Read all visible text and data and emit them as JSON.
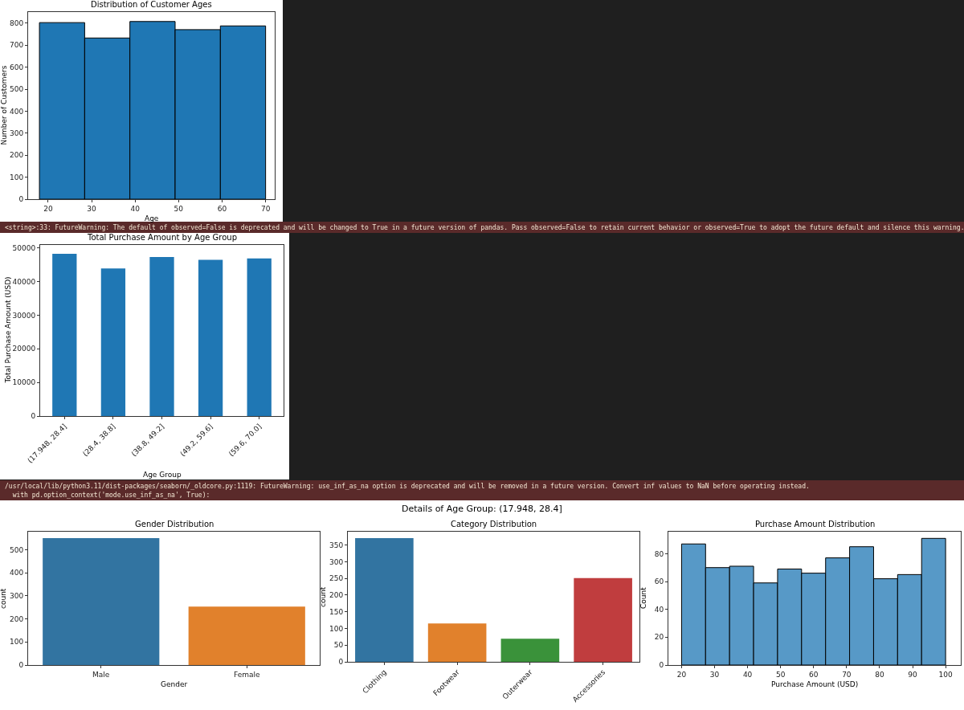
{
  "chart_data": [
    {
      "type": "histogram",
      "title": "Distribution of Customer Ages",
      "xlabel": "Age",
      "ylabel": "Number of Customers",
      "bins": [
        18,
        28.4,
        38.8,
        49.2,
        59.6,
        70
      ],
      "values": [
        803,
        733,
        808,
        771,
        788
      ],
      "color": "#1f77b4",
      "xlim": [
        15.4,
        72.1
      ],
      "xticks": [
        20,
        30,
        40,
        50,
        60,
        70
      ],
      "ylim": [
        0,
        851
      ],
      "yticks": [
        0,
        100,
        200,
        300,
        400,
        500,
        600,
        700,
        800
      ]
    },
    {
      "type": "other",
      "annotations": [
        "<string>:33: FutureWarning: The default of observed=False is deprecated and will be changed to True in a future version of pandas. Pass observed=False to retain current behavior or observed=True to adopt the future default and silence this warning."
      ]
    },
    {
      "type": "bar",
      "title": "Total Purchase Amount by Age Group",
      "xlabel": "Age Group",
      "ylabel": "Total Purchase Amount (USD)",
      "categories": [
        "(17.948, 28.4]",
        "(28.4, 38.8]",
        "(38.8, 49.2]",
        "(49.2, 59.6]",
        "(59.6, 70.0]"
      ],
      "values": [
        48300,
        43900,
        47300,
        46500,
        46900
      ],
      "color": "#1f77b4",
      "ylim": [
        0,
        50900
      ],
      "yticks": [
        0,
        10000,
        20000,
        30000,
        40000,
        50000
      ]
    },
    {
      "type": "other",
      "annotations": [
        "/usr/local/lib/python3.11/dist-packages/seaborn/_oldcore.py:1119: FutureWarning: use_inf_as_na option is deprecated and will be removed in a future version. Convert inf values to NaN before operating instead.",
        "  with pd.option_context('mode.use_inf_as_na', True):"
      ]
    },
    {
      "type": "other",
      "title": "Details of Age Group: (17.948, 28.4]"
    },
    {
      "type": "bar",
      "title": "Gender Distribution",
      "xlabel": "Gender",
      "ylabel": "count",
      "categories": [
        "Male",
        "Female"
      ],
      "values": [
        550,
        253
      ],
      "colors": [
        "#3274a1",
        "#e1812c"
      ],
      "ylim": [
        0,
        578
      ],
      "yticks": [
        0,
        100,
        200,
        300,
        400,
        500
      ]
    },
    {
      "type": "bar",
      "title": "Category Distribution",
      "ylabel": "count",
      "categories": [
        "Clothing",
        "Footwear",
        "Outerwear",
        "Accessories"
      ],
      "values": [
        371,
        115,
        69,
        251
      ],
      "colors": [
        "#3274a1",
        "#e1812c",
        "#3a923a",
        "#c03d3e"
      ],
      "ylim": [
        0,
        390
      ],
      "yticks": [
        0,
        50,
        100,
        150,
        200,
        250,
        300,
        350
      ]
    },
    {
      "type": "histogram",
      "title": "Purchase Amount Distribution",
      "xlabel": "Purchase Amount (USD)",
      "ylabel": "Count",
      "bins": [
        20,
        27.27,
        34.55,
        41.82,
        49.09,
        56.36,
        63.64,
        70.91,
        78.18,
        85.45,
        92.73,
        100
      ],
      "values": [
        87,
        70,
        71,
        59,
        69,
        66,
        77,
        85,
        62,
        65,
        91
      ],
      "color": "#5799c7",
      "xlim": [
        16,
        104.6
      ],
      "xticks": [
        20,
        30,
        40,
        50,
        60,
        70,
        80,
        90,
        100
      ],
      "ylim": [
        0,
        95.8
      ],
      "yticks": [
        0,
        20,
        40,
        60,
        80
      ]
    }
  ]
}
